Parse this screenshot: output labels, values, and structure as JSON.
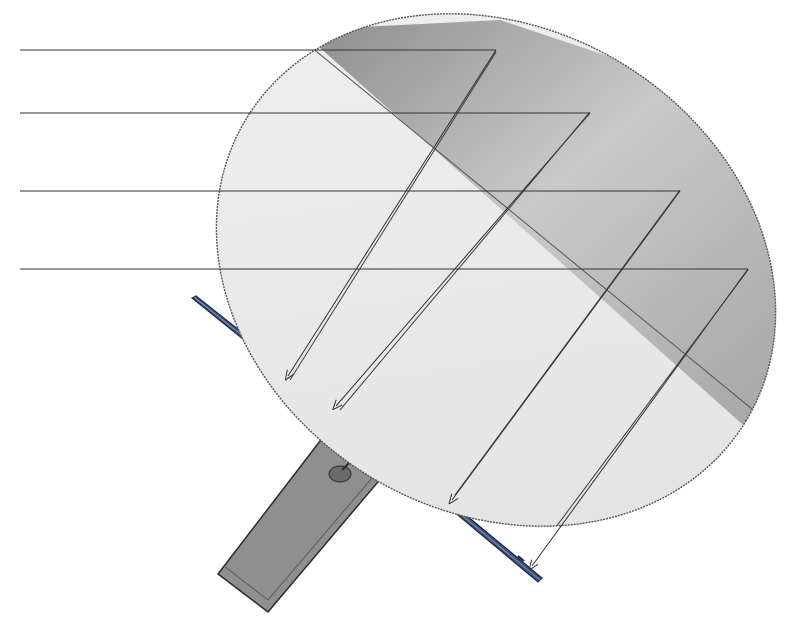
{
  "figure": {
    "colors": {
      "background": "#ffffff",
      "reflector_light": "#e9e9e9",
      "reflector_dark": "#9a9a9a",
      "ray_line": "#333333",
      "solar_panel": "#3b4f7a",
      "solar_panel_edge": "#1e2a44",
      "bus_body": "#8f8f8f",
      "bus_edge": "#2b2b2b",
      "feed": "#b8b8b8"
    },
    "parts": [
      {
        "name": "parabolic-reflector",
        "icon": "dish-reflector"
      },
      {
        "name": "incoming-rays",
        "count": 4
      },
      {
        "name": "reflected-rays",
        "count": 4
      },
      {
        "name": "solar-array",
        "icon": "solar-panel"
      },
      {
        "name": "spacecraft-bus",
        "icon": "satellite-bus"
      },
      {
        "name": "feed-horn",
        "icon": "feed-horn"
      }
    ]
  }
}
